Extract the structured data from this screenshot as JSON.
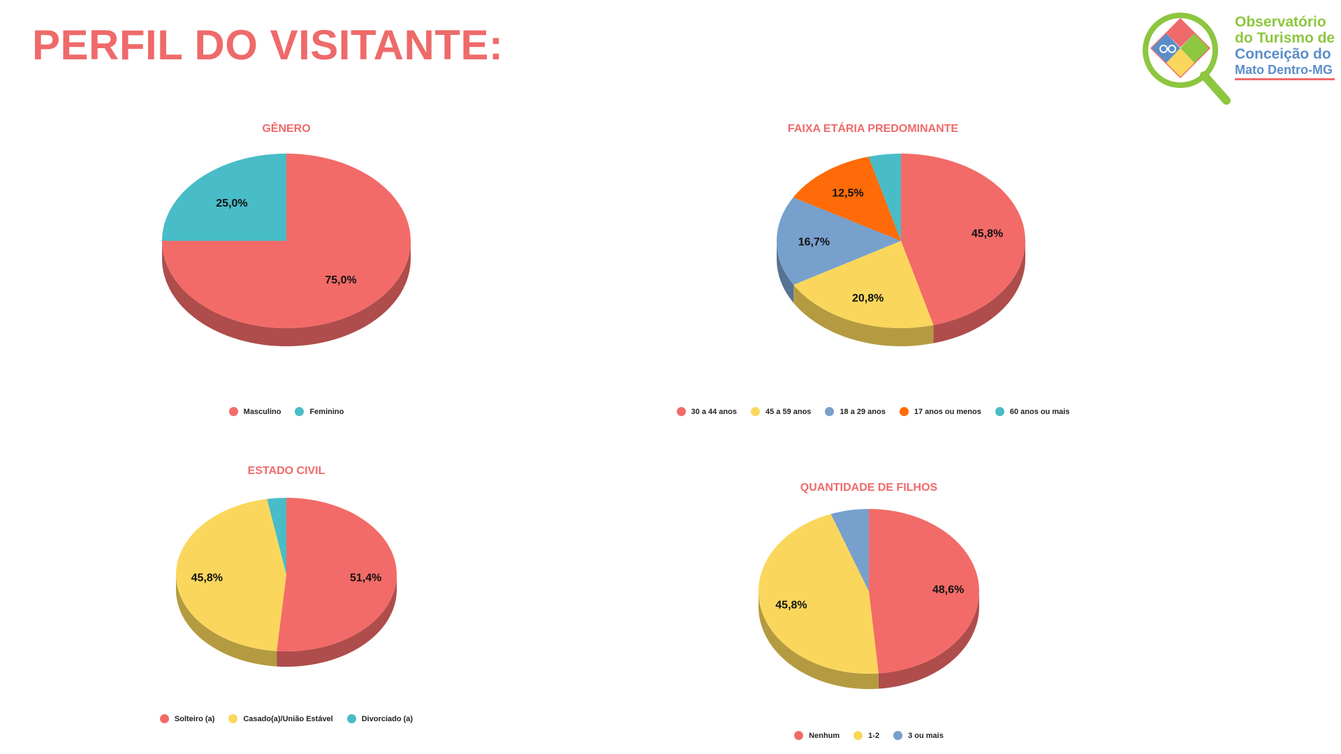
{
  "page": {
    "title": "PERFIL DO VISITANTE:"
  },
  "logo": {
    "line1": "Observatório",
    "line2": "do Turismo de",
    "line3": "Conceição do",
    "line4": "Mato Dentro-MG"
  },
  "colors": {
    "red": "#f26b68",
    "teal": "#48bcc7",
    "yellow": "#fad75c",
    "blue": "#77a0cc",
    "orange": "#ff6b08"
  },
  "chart_data": [
    {
      "id": "genero",
      "type": "pie",
      "style": "3d",
      "title": "GÊNERO",
      "legend_position": "bottom",
      "series": [
        {
          "name": "Masculino",
          "value": 75.0,
          "label": "75,0%",
          "color": "#f26b68"
        },
        {
          "name": "Feminino",
          "value": 25.0,
          "label": "25,0%",
          "color": "#48bcc7"
        }
      ]
    },
    {
      "id": "faixa-etaria",
      "type": "pie",
      "style": "3d",
      "title": "FAIXA ETÁRIA PREDOMINANTE",
      "legend_position": "bottom",
      "series": [
        {
          "name": "30 a 44 anos",
          "value": 45.8,
          "label": "45,8%",
          "color": "#f26b68"
        },
        {
          "name": "45 a 59 anos",
          "value": 20.8,
          "label": "20,8%",
          "color": "#fad75c"
        },
        {
          "name": "18 a 29 anos",
          "value": 16.7,
          "label": "16,7%",
          "color": "#77a0cc"
        },
        {
          "name": "17 anos ou menos",
          "value": 12.5,
          "label": "12,5%",
          "color": "#ff6b08"
        },
        {
          "name": "60 anos ou mais",
          "value": 4.2,
          "label": "",
          "color": "#48bcc7"
        }
      ]
    },
    {
      "id": "estado-civil",
      "type": "pie",
      "style": "3d",
      "title": "ESTADO CIVIL",
      "legend_position": "bottom",
      "series": [
        {
          "name": "Solteiro (a)",
          "value": 51.4,
          "label": "51,4%",
          "color": "#f26b68"
        },
        {
          "name": "Casado(a)/União Estável",
          "value": 45.8,
          "label": "45,8%",
          "color": "#fad75c"
        },
        {
          "name": "Divorciado (a)",
          "value": 2.8,
          "label": "",
          "color": "#48bcc7"
        }
      ]
    },
    {
      "id": "filhos",
      "type": "pie",
      "style": "3d",
      "title": "QUANTIDADE DE FILHOS",
      "legend_position": "bottom",
      "series": [
        {
          "name": "Nenhum",
          "value": 48.6,
          "label": "48,6%",
          "color": "#f26b68"
        },
        {
          "name": "1-2",
          "value": 45.8,
          "label": "45,8%",
          "color": "#fad75c"
        },
        {
          "name": "3 ou mais",
          "value": 5.6,
          "label": "",
          "color": "#77a0cc"
        }
      ]
    }
  ]
}
